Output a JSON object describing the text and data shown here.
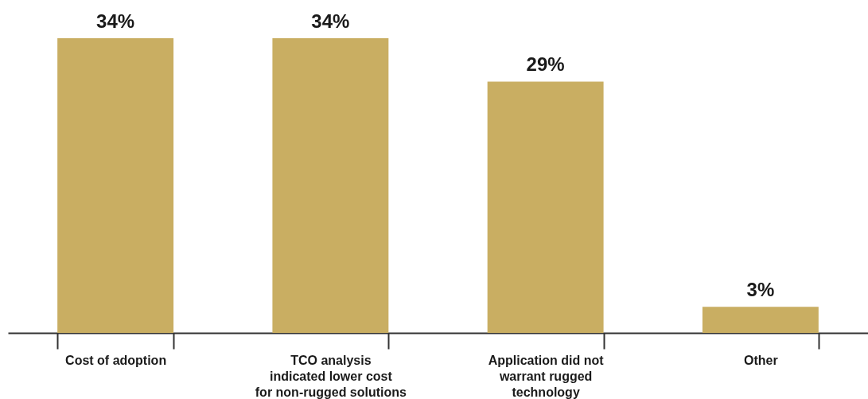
{
  "chart_data": {
    "type": "bar",
    "categories": [
      "Cost of adoption",
      "TCO analysis\nindicated lower cost\nfor non-rugged solutions",
      "Application did not\nwarrant rugged\ntechnology",
      "Other"
    ],
    "values": [
      34,
      34,
      29,
      3
    ],
    "value_labels": [
      "34%",
      "34%",
      "29%",
      "3%"
    ],
    "color": "#c9ae62",
    "grid": false
  }
}
